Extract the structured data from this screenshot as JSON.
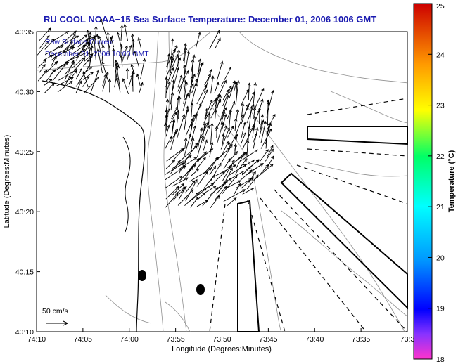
{
  "chart_data": {
    "type": "quiver",
    "title": "RU COOL  NOAA−15  Sea Surface Temperature:  December 01, 2006 1006 GMT",
    "annotation_lines": [
      "Raw Surface Current",
      "December 01, 2006 10:00 GMT"
    ],
    "xlabel": "Longitude (Degrees:Minutes)",
    "ylabel": "Latitude (Degrees:Minutes)",
    "x_ticks": [
      "74:10",
      "74:05",
      "74:00",
      "73:55",
      "73:50",
      "73:45",
      "73:40",
      "73:35",
      "73:3"
    ],
    "y_ticks": [
      "40:10",
      "40:15",
      "40:20",
      "40:25",
      "40:30",
      "40:35"
    ],
    "xlim_minutes_west": [
      4450,
      4410
    ],
    "ylim_minutes_north": [
      2410,
      2435
    ],
    "colorbar": {
      "label": "Temperature (°C)",
      "range": [
        18,
        25
      ],
      "ticks": [
        "18",
        "19",
        "20",
        "21",
        "22",
        "23",
        "24",
        "25"
      ]
    },
    "vector_scale_label": "50 cm/s"
  }
}
